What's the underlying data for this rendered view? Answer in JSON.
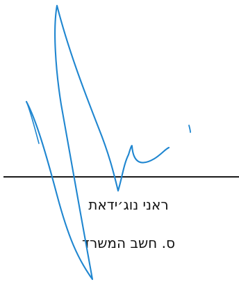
{
  "signature_block": {
    "name": "ראני נוג׳ידאת",
    "title": "ס. חשב המשרד"
  },
  "colors": {
    "ink": "#1f86d0",
    "line": "#1a1a1a",
    "text": "#111111"
  }
}
